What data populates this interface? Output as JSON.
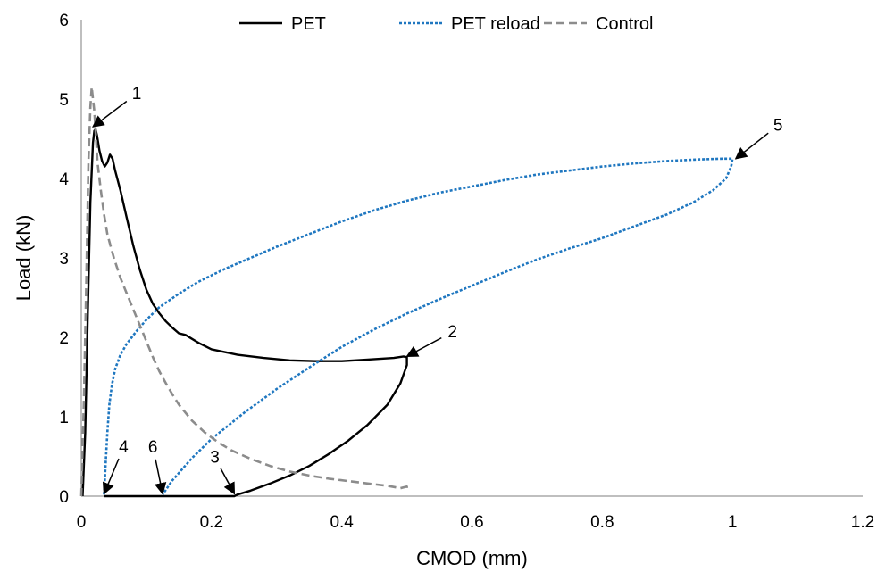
{
  "chart_data": {
    "type": "line",
    "title": "",
    "xlabel": "CMOD (mm)",
    "ylabel": "Load (kN)",
    "xlim": [
      0,
      1.2
    ],
    "ylim": [
      0,
      6
    ],
    "xticks": [
      0,
      0.2,
      0.4,
      0.6,
      0.8,
      1,
      1.2
    ],
    "xtick_labels": [
      "0",
      "0.2",
      "0.4",
      "0.6",
      "0.8",
      "1",
      "1.2"
    ],
    "yticks": [
      0,
      1,
      2,
      3,
      4,
      5,
      6
    ],
    "ytick_labels": [
      "0",
      "1",
      "2",
      "3",
      "4",
      "5",
      "6"
    ],
    "grid": false,
    "legend_position": "top",
    "series": [
      {
        "name": "PET",
        "color": "#000000",
        "dash": "solid",
        "x": [
          0.002,
          0.006,
          0.01,
          0.014,
          0.018,
          0.02,
          0.022,
          0.024,
          0.028,
          0.032,
          0.036,
          0.04,
          0.044,
          0.048,
          0.052,
          0.06,
          0.07,
          0.08,
          0.09,
          0.1,
          0.11,
          0.12,
          0.13,
          0.14,
          0.15,
          0.16,
          0.18,
          0.2,
          0.24,
          0.28,
          0.32,
          0.36,
          0.4,
          0.44,
          0.48,
          0.495,
          0.5,
          0.5,
          0.49,
          0.47,
          0.44,
          0.41,
          0.38,
          0.35,
          0.32,
          0.29,
          0.26,
          0.24,
          0.235,
          0.2,
          0.16,
          0.12,
          0.08,
          0.05,
          0.035
        ],
        "y": [
          0,
          0.8,
          2.3,
          3.7,
          4.45,
          4.6,
          4.62,
          4.55,
          4.35,
          4.22,
          4.15,
          4.2,
          4.3,
          4.25,
          4.1,
          3.85,
          3.5,
          3.15,
          2.85,
          2.6,
          2.42,
          2.3,
          2.2,
          2.12,
          2.05,
          2.03,
          1.93,
          1.85,
          1.78,
          1.74,
          1.71,
          1.7,
          1.7,
          1.72,
          1.74,
          1.76,
          1.75,
          1.65,
          1.42,
          1.15,
          0.9,
          0.7,
          0.53,
          0.38,
          0.26,
          0.16,
          0.07,
          0.02,
          0.0,
          0.0,
          0.0,
          0.0,
          0.0,
          0.0,
          0.0
        ]
      },
      {
        "name": "PET reload",
        "color": "#1f77c0",
        "dash": "dotted",
        "x": [
          0.035,
          0.037,
          0.04,
          0.043,
          0.047,
          0.052,
          0.06,
          0.07,
          0.085,
          0.1,
          0.12,
          0.15,
          0.18,
          0.22,
          0.26,
          0.3,
          0.35,
          0.4,
          0.45,
          0.5,
          0.55,
          0.6,
          0.65,
          0.7,
          0.75,
          0.8,
          0.85,
          0.9,
          0.95,
          0.985,
          1.0,
          0.998,
          0.99,
          0.97,
          0.94,
          0.9,
          0.85,
          0.8,
          0.75,
          0.7,
          0.65,
          0.6,
          0.55,
          0.5,
          0.45,
          0.4,
          0.35,
          0.3,
          0.25,
          0.2,
          0.17,
          0.14,
          0.125
        ],
        "y": [
          0.02,
          0.35,
          0.8,
          1.15,
          1.4,
          1.6,
          1.78,
          1.92,
          2.08,
          2.22,
          2.38,
          2.55,
          2.7,
          2.86,
          3.0,
          3.14,
          3.3,
          3.46,
          3.6,
          3.72,
          3.82,
          3.9,
          3.98,
          4.05,
          4.1,
          4.15,
          4.19,
          4.22,
          4.24,
          4.25,
          4.25,
          4.15,
          4.0,
          3.85,
          3.7,
          3.55,
          3.4,
          3.25,
          3.12,
          2.98,
          2.82,
          2.65,
          2.48,
          2.3,
          2.1,
          1.88,
          1.62,
          1.35,
          1.05,
          0.72,
          0.48,
          0.2,
          0.02
        ]
      },
      {
        "name": "Control",
        "color": "#8c8c8c",
        "dash": "dashed",
        "x": [
          0.0,
          0.004,
          0.008,
          0.011,
          0.014,
          0.016,
          0.018,
          0.02,
          0.022,
          0.025,
          0.03,
          0.035,
          0.04,
          0.045,
          0.05,
          0.06,
          0.07,
          0.08,
          0.09,
          0.1,
          0.11,
          0.12,
          0.13,
          0.14,
          0.15,
          0.17,
          0.19,
          0.21,
          0.23,
          0.26,
          0.29,
          0.32,
          0.35,
          0.38,
          0.41,
          0.44,
          0.47,
          0.49,
          0.5,
          0.5
        ],
        "y": [
          0.0,
          1.2,
          2.8,
          4.2,
          4.9,
          5.15,
          5.0,
          4.85,
          4.6,
          4.2,
          3.85,
          3.55,
          3.3,
          3.15,
          3.0,
          2.75,
          2.55,
          2.35,
          2.15,
          1.95,
          1.75,
          1.57,
          1.42,
          1.28,
          1.15,
          0.95,
          0.8,
          0.68,
          0.58,
          0.47,
          0.38,
          0.31,
          0.26,
          0.22,
          0.19,
          0.16,
          0.13,
          0.1,
          0.12,
          0.05
        ]
      }
    ],
    "annotations": [
      {
        "label": "1",
        "x": 0.018,
        "y": 4.65,
        "text_x": 0.085,
        "text_y": 5.0
      },
      {
        "label": "2",
        "x": 0.5,
        "y": 1.76,
        "text_x": 0.57,
        "text_y": 2.0
      },
      {
        "label": "3",
        "x": 0.235,
        "y": 0.03,
        "text_x": 0.205,
        "text_y": 0.42
      },
      {
        "label": "4",
        "x": 0.035,
        "y": 0.03,
        "text_x": 0.065,
        "text_y": 0.55
      },
      {
        "label": "5",
        "x": 1.005,
        "y": 4.25,
        "text_x": 1.07,
        "text_y": 4.6
      },
      {
        "label": "6",
        "x": 0.125,
        "y": 0.03,
        "text_x": 0.11,
        "text_y": 0.55
      }
    ]
  }
}
